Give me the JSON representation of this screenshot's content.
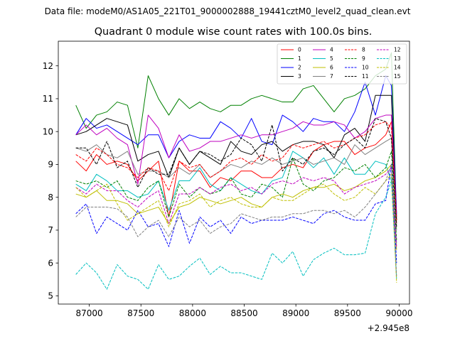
{
  "chart_data": {
    "type": "line",
    "suptitle": "Data file: modeM0/AS1A05_221T01_9000002888_19441cztM0_level2_quad_clean.evt",
    "title": "Quadrant 0 module wise count rates with 100.0s bins.",
    "xlabel": "",
    "ylabel": "",
    "x_offset_label": "+2.945e8",
    "xlim": [
      86700,
      90100
    ],
    "ylim": [
      4.75,
      12.75
    ],
    "xticks": [
      87000,
      87500,
      88000,
      88500,
      89000,
      89500,
      90000
    ],
    "xtick_labels": [
      "87000",
      "87500",
      "88000",
      "88500",
      "89000",
      "89500",
      "90000"
    ],
    "yticks": [
      5,
      6,
      7,
      8,
      9,
      10,
      11,
      12
    ],
    "ytick_labels": [
      "5",
      "6",
      "7",
      "8",
      "9",
      "10",
      "11",
      "12"
    ],
    "legend_location": "upper-right",
    "legend_columns": 4,
    "x": [
      86870,
      86970,
      87070,
      87170,
      87270,
      87370,
      87470,
      87570,
      87670,
      87770,
      87870,
      87970,
      88070,
      88170,
      88270,
      88370,
      88470,
      88570,
      88670,
      88770,
      88870,
      88970,
      89070,
      89170,
      89270,
      89370,
      89470,
      89570,
      89670,
      89770,
      89870,
      89925,
      89975
    ],
    "series": [
      {
        "name": "0",
        "color": "#ff0000",
        "dash": "solid",
        "values": [
          9.1,
          8.8,
          9.3,
          9.0,
          9.1,
          9.0,
          8.5,
          8.8,
          9.1,
          7.4,
          9.1,
          8.8,
          8.8,
          8.3,
          8.6,
          8.5,
          8.8,
          8.8,
          8.6,
          8.6,
          8.9,
          9.0,
          8.9,
          9.4,
          9.6,
          9.7,
          9.7,
          9.3,
          9.5,
          9.6,
          9.9,
          10.3,
          7.2
        ]
      },
      {
        "name": "1",
        "color": "#008000",
        "dash": "solid",
        "values": [
          10.8,
          10.1,
          10.5,
          10.6,
          10.9,
          10.8,
          9.5,
          11.7,
          11.0,
          10.5,
          11.0,
          10.7,
          10.9,
          10.7,
          10.6,
          10.8,
          10.8,
          11.0,
          11.1,
          11.0,
          10.9,
          10.9,
          11.3,
          11.4,
          11.0,
          10.6,
          11.0,
          11.1,
          11.3,
          11.7,
          11.9,
          12.4,
          7.4
        ]
      },
      {
        "name": "2",
        "color": "#0000ff",
        "dash": "solid",
        "values": [
          9.9,
          10.4,
          10.1,
          10.2,
          10.0,
          9.8,
          9.6,
          9.9,
          9.9,
          9.2,
          9.7,
          9.9,
          9.8,
          9.8,
          10.3,
          10.1,
          9.8,
          10.4,
          9.7,
          9.6,
          10.5,
          10.3,
          10.0,
          10.4,
          10.3,
          10.3,
          10.0,
          10.6,
          11.5,
          10.5,
          11.7,
          11.4,
          7.5
        ]
      },
      {
        "name": "3",
        "color": "#000000",
        "dash": "solid",
        "values": [
          9.9,
          10.0,
          10.2,
          10.4,
          10.3,
          10.2,
          9.1,
          9.3,
          9.4,
          8.6,
          9.5,
          9.0,
          9.4,
          9.2,
          9.0,
          9.7,
          9.4,
          9.3,
          9.6,
          9.7,
          9.4,
          9.6,
          9.7,
          9.7,
          9.6,
          9.2,
          9.9,
          10.1,
          9.7,
          11.1,
          11.1,
          11.1,
          7.3
        ]
      },
      {
        "name": "4",
        "color": "#bf00bf",
        "dash": "solid",
        "values": [
          9.9,
          10.2,
          9.9,
          10.1,
          9.8,
          9.6,
          8.4,
          10.5,
          10.1,
          9.2,
          9.9,
          9.4,
          9.5,
          9.7,
          9.7,
          9.8,
          9.9,
          9.8,
          9.9,
          9.9,
          10.0,
          10.1,
          10.3,
          10.2,
          10.2,
          10.3,
          10.2,
          9.8,
          10.0,
          10.4,
          10.5,
          10.5,
          7.4
        ]
      },
      {
        "name": "5",
        "color": "#00bfbf",
        "dash": "solid",
        "values": [
          8.4,
          8.2,
          8.7,
          8.5,
          8.2,
          8.2,
          8.0,
          8.1,
          8.5,
          7.6,
          8.5,
          8.5,
          8.9,
          8.4,
          8.2,
          8.6,
          8.4,
          8.2,
          8.1,
          8.5,
          8.6,
          9.4,
          9.2,
          8.9,
          9.2,
          8.7,
          9.2,
          8.7,
          8.7,
          9.1,
          9.0,
          8.5,
          6.6
        ]
      },
      {
        "name": "6",
        "color": "#bfbf00",
        "dash": "solid",
        "values": [
          8.1,
          8.0,
          8.2,
          7.9,
          7.9,
          7.8,
          7.5,
          7.6,
          7.7,
          7.2,
          7.7,
          7.8,
          8.0,
          7.9,
          7.8,
          7.9,
          8.0,
          7.8,
          7.7,
          8.0,
          8.1,
          8.0,
          8.2,
          8.3,
          8.3,
          8.4,
          8.2,
          8.3,
          8.5,
          8.6,
          8.8,
          9.0,
          6.4
        ]
      },
      {
        "name": "7",
        "color": "#808080",
        "dash": "solid",
        "values": [
          9.5,
          9.4,
          9.6,
          9.3,
          9.2,
          9.4,
          8.7,
          8.8,
          8.8,
          8.6,
          8.9,
          8.7,
          9.0,
          8.6,
          8.8,
          9.0,
          8.9,
          9.1,
          9.0,
          9.2,
          9.0,
          9.1,
          9.2,
          9.0,
          9.1,
          9.2,
          9.0,
          9.6,
          9.3,
          9.5,
          9.7,
          9.8,
          7.0
        ]
      },
      {
        "name": "8",
        "color": "#ff0000",
        "dash": "dashed",
        "values": [
          9.3,
          9.1,
          9.5,
          9.3,
          9.0,
          8.9,
          8.6,
          8.9,
          8.8,
          8.2,
          9.1,
          8.9,
          9.0,
          8.6,
          8.8,
          9.1,
          9.2,
          9.0,
          9.3,
          9.1,
          9.2,
          9.6,
          9.5,
          9.6,
          9.7,
          9.5,
          9.6,
          9.8,
          9.9,
          10.2,
          10.3,
          10.1,
          7.3
        ]
      },
      {
        "name": "9",
        "color": "#008000",
        "dash": "dashed",
        "values": [
          8.5,
          8.4,
          8.5,
          8.3,
          8.5,
          8.0,
          7.9,
          8.3,
          8.5,
          7.4,
          8.4,
          8.0,
          8.3,
          8.1,
          8.2,
          8.6,
          8.1,
          8.0,
          8.4,
          8.3,
          8.0,
          9.2,
          8.4,
          8.2,
          8.5,
          8.6,
          8.9,
          8.8,
          9.0,
          8.6,
          8.9,
          9.4,
          6.7
        ]
      },
      {
        "name": "10",
        "color": "#0000ff",
        "dash": "dashed",
        "values": [
          7.5,
          7.8,
          6.9,
          7.4,
          7.2,
          7.0,
          7.6,
          7.1,
          7.2,
          6.5,
          7.6,
          6.6,
          7.4,
          7.1,
          7.3,
          6.9,
          7.4,
          7.2,
          7.3,
          7.3,
          7.3,
          7.4,
          7.3,
          7.2,
          7.5,
          7.6,
          7.4,
          7.3,
          7.3,
          7.8,
          7.9,
          9.0,
          6.0
        ]
      },
      {
        "name": "11",
        "color": "#000000",
        "dash": "dashed",
        "values": [
          9.5,
          9.5,
          9.0,
          9.7,
          8.9,
          9.1,
          8.3,
          8.9,
          8.7,
          8.7,
          9.5,
          9.0,
          9.4,
          9.3,
          9.1,
          9.3,
          9.8,
          9.6,
          9.1,
          10.2,
          8.8,
          9.2,
          9.0,
          9.4,
          9.5,
          9.3,
          9.6,
          9.8,
          9.5,
          10.4,
          10.3,
          9.8,
          7.1
        ]
      },
      {
        "name": "12",
        "color": "#bf00bf",
        "dash": "dashed",
        "values": [
          8.3,
          8.1,
          8.4,
          8.2,
          8.2,
          7.9,
          7.7,
          8.0,
          8.2,
          7.2,
          8.1,
          8.1,
          8.3,
          8.1,
          8.3,
          8.4,
          8.2,
          8.3,
          8.1,
          8.4,
          8.5,
          8.4,
          8.6,
          8.5,
          8.6,
          8.5,
          8.1,
          8.3,
          8.4,
          8.5,
          8.7,
          8.9,
          6.5
        ]
      },
      {
        "name": "13",
        "color": "#00bfbf",
        "dash": "dashed",
        "values": [
          5.65,
          6.0,
          5.7,
          5.2,
          5.95,
          5.6,
          5.5,
          5.2,
          5.95,
          5.5,
          5.6,
          5.9,
          6.15,
          5.65,
          5.9,
          5.7,
          5.7,
          5.6,
          5.5,
          6.3,
          6.0,
          6.35,
          5.6,
          6.1,
          6.3,
          6.45,
          6.25,
          6.25,
          6.3,
          7.5,
          8.0,
          8.5,
          5.5
        ]
      },
      {
        "name": "14",
        "color": "#bfbf00",
        "dash": "dashed",
        "values": [
          8.3,
          8.0,
          8.2,
          8.4,
          7.8,
          7.3,
          7.5,
          7.7,
          7.9,
          7.1,
          7.8,
          7.9,
          8.1,
          7.7,
          7.9,
          8.0,
          7.8,
          7.7,
          7.7,
          8.0,
          7.9,
          7.9,
          8.1,
          8.3,
          8.4,
          8.1,
          7.9,
          8.0,
          8.3,
          8.1,
          8.5,
          8.7,
          5.4
        ]
      },
      {
        "name": "15",
        "color": "#808080",
        "dash": "dashed",
        "values": [
          7.4,
          7.7,
          7.7,
          7.7,
          7.65,
          7.4,
          6.8,
          7.1,
          7.3,
          6.8,
          7.4,
          7.1,
          7.3,
          6.9,
          7.1,
          7.2,
          7.5,
          7.4,
          7.3,
          7.4,
          7.4,
          7.5,
          7.5,
          7.6,
          7.6,
          7.5,
          7.6,
          7.4,
          7.7,
          8.1,
          8.5,
          9.0,
          5.6
        ]
      }
    ]
  }
}
